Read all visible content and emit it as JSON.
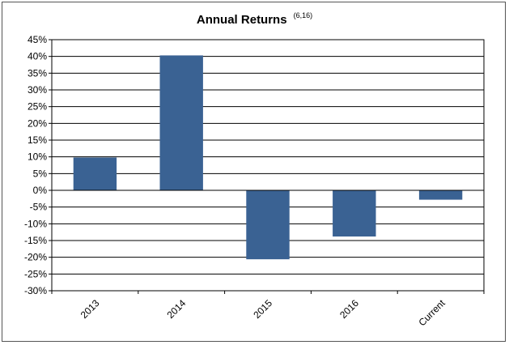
{
  "chart_data": {
    "type": "bar",
    "title": "Annual Returns",
    "title_note": "(6,16)",
    "categories": [
      "2013",
      "2014",
      "2015",
      "2016",
      "Current"
    ],
    "values": [
      9.8,
      40.3,
      -20.6,
      -13.8,
      -2.8
    ],
    "ylim": [
      -30,
      45
    ],
    "ytick_step": 5,
    "ytick_suffix": "%",
    "ytick_labels": [
      "45%",
      "40%",
      "35%",
      "30%",
      "25%",
      "20%",
      "15%",
      "10%",
      "5%",
      "0%",
      "-5%",
      "-10%",
      "-15%",
      "-20%",
      "-25%",
      "-30%"
    ],
    "grid": true,
    "bar_color": "#3A6293",
    "xlabel": "",
    "ylabel": ""
  }
}
